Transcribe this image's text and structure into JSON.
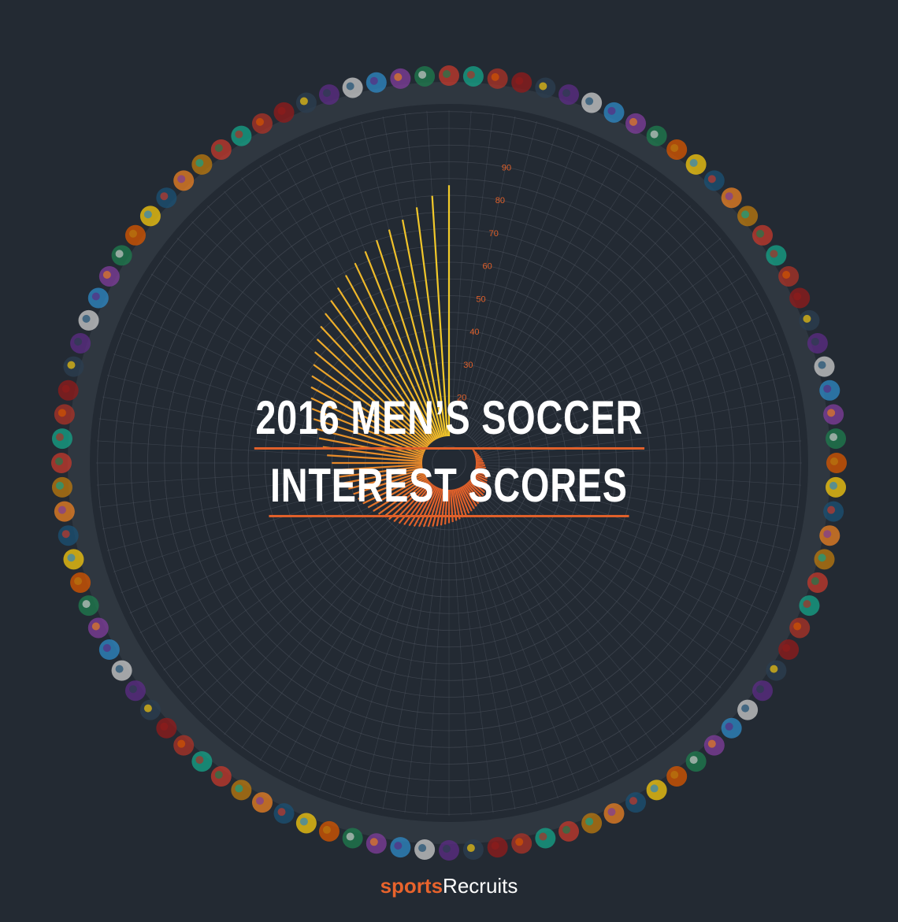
{
  "title": {
    "line1": "2016 MEN’S SOCCER",
    "line2": "INTEREST SCORES"
  },
  "brand": {
    "part1": "sports",
    "part2": "Recruits"
  },
  "colors": {
    "background": "#232a33",
    "grid": "#4b525c",
    "accent_orange": "#e0602a",
    "accent_yellow": "#f2cc2a",
    "tick_label": "#e0602a"
  },
  "chart_data": {
    "type": "radial-bar",
    "title": "2016 MEN’S SOCCER INTEREST SCORES",
    "radial_axis": {
      "ticks": [
        20,
        30,
        40,
        50,
        60,
        70,
        80,
        90
      ],
      "range": [
        0,
        100
      ]
    },
    "grid": true,
    "team_count": 100,
    "values": [
      83,
      80,
      77,
      74,
      72,
      70,
      68,
      66,
      64,
      62,
      60,
      58,
      56,
      54,
      52,
      50,
      48.5,
      47,
      45.5,
      44,
      42.5,
      41,
      39.5,
      38,
      36.5,
      35,
      34,
      33,
      32,
      31,
      30,
      29.2,
      28.4,
      27.6,
      26.8,
      26,
      25.2,
      24.6,
      24,
      23.4,
      22.8,
      22.2,
      21.6,
      21,
      20.5,
      20,
      19.6,
      19.2,
      18.8,
      18.4,
      18,
      17.7,
      17.4,
      17.1,
      16.8,
      16.5,
      16.2,
      15.9,
      15.6,
      15.3,
      15,
      14.7,
      14.4,
      14.1,
      13.8,
      13.5,
      13.2,
      12.9,
      12.6,
      12.3,
      12,
      11.7,
      11.4,
      11.1,
      10.8,
      10.5,
      10.2,
      9.9,
      9.6,
      9.3,
      9,
      8.8,
      8.6,
      8.4,
      8.2,
      8,
      7.8,
      7.6,
      7.4,
      7.2,
      7,
      6.8,
      6.6,
      6.4,
      6.2,
      6,
      5.8,
      5.6,
      5.4,
      5.2
    ]
  }
}
